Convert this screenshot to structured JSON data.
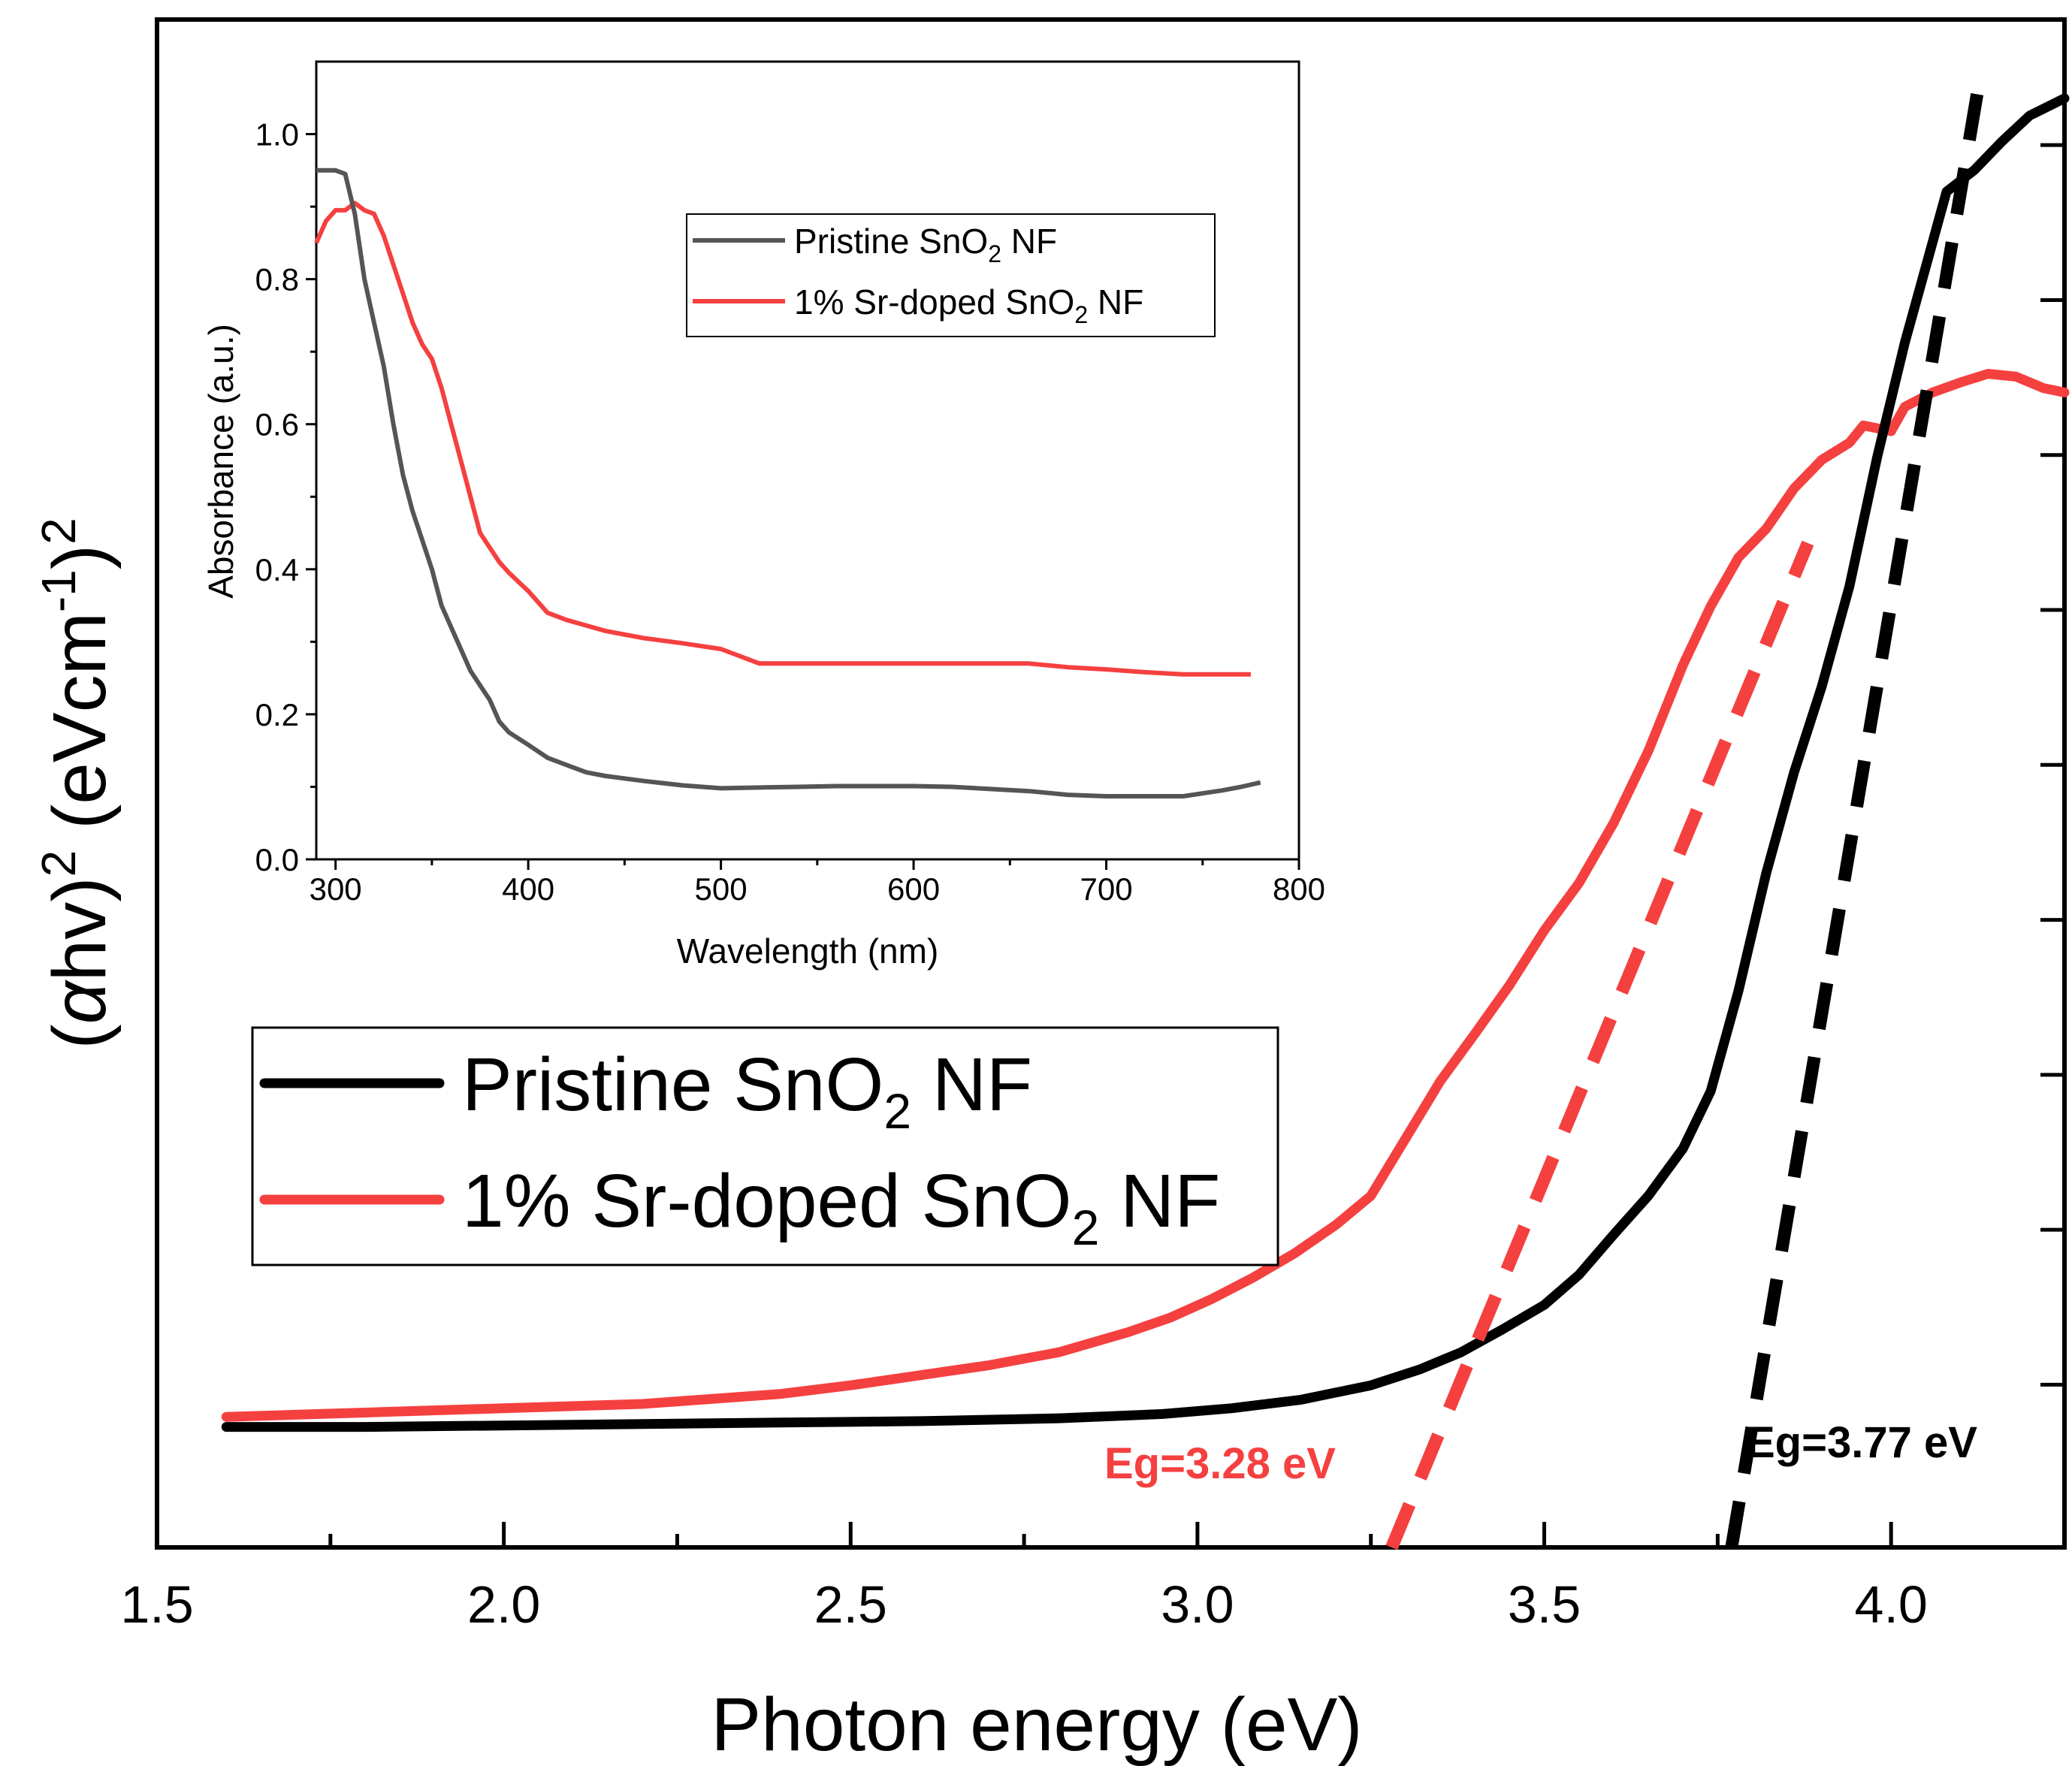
{
  "chart_data": [
    {
      "type": "line",
      "title": "",
      "xlabel": "Photon energy (eV)",
      "ylabel_parts": {
        "a": "(",
        "alpha": "α",
        "b": "hv)",
        "sup1": "2",
        "c": " (eVcm",
        "sup2": "-1",
        "d": ")",
        "sup3": "2"
      },
      "xlim": [
        1.5,
        4.25
      ],
      "ylim": [
        0.0,
        1.0
      ],
      "x_ticks": [
        "1.5",
        "2.0",
        "2.5",
        "3.0",
        "3.5",
        "4.0"
      ],
      "x_tick_values": [
        1.5,
        2.0,
        2.5,
        3.0,
        3.5,
        4.0
      ],
      "y_tick_labels_shown": false,
      "legend": {
        "position": "middle-left",
        "entries": [
          {
            "prefix": "Pristine SnO",
            "sub": "2",
            "suffix": " NF",
            "color": "#000000"
          },
          {
            "prefix": "1% Sr-doped SnO",
            "sub": "2",
            "suffix": " NF",
            "color": "#f54040"
          }
        ]
      },
      "series": [
        {
          "name": "Pristine SnO2 NF",
          "color": "#000000",
          "points": [
            [
              1.6,
              0.084
            ],
            [
              1.8,
              0.084
            ],
            [
              2.0,
              0.085
            ],
            [
              2.2,
              0.086
            ],
            [
              2.4,
              0.087
            ],
            [
              2.6,
              0.088
            ],
            [
              2.8,
              0.09
            ],
            [
              2.95,
              0.093
            ],
            [
              3.05,
              0.097
            ],
            [
              3.15,
              0.103
            ],
            [
              3.25,
              0.113
            ],
            [
              3.32,
              0.124
            ],
            [
              3.38,
              0.136
            ],
            [
              3.44,
              0.152
            ],
            [
              3.5,
              0.169
            ],
            [
              3.55,
              0.19
            ],
            [
              3.6,
              0.218
            ],
            [
              3.65,
              0.245
            ],
            [
              3.7,
              0.278
            ],
            [
              3.74,
              0.318
            ],
            [
              3.78,
              0.388
            ],
            [
              3.82,
              0.47
            ],
            [
              3.86,
              0.54
            ],
            [
              3.9,
              0.6
            ],
            [
              3.94,
              0.67
            ],
            [
              3.98,
              0.76
            ],
            [
              4.02,
              0.84
            ],
            [
              4.06,
              0.91
            ],
            [
              4.08,
              0.945
            ],
            [
              4.12,
              0.96
            ],
            [
              4.16,
              0.98
            ],
            [
              4.2,
              0.998
            ],
            [
              4.25,
              1.01
            ]
          ]
        },
        {
          "name": "1% Sr-doped SnO2 NF",
          "color": "#f54040",
          "points": [
            [
              1.6,
              0.091
            ],
            [
              1.8,
              0.094
            ],
            [
              2.0,
              0.097
            ],
            [
              2.2,
              0.1
            ],
            [
              2.4,
              0.107
            ],
            [
              2.5,
              0.113
            ],
            [
              2.6,
              0.12
            ],
            [
              2.7,
              0.127
            ],
            [
              2.8,
              0.136
            ],
            [
              2.9,
              0.15
            ],
            [
              2.96,
              0.16
            ],
            [
              3.02,
              0.173
            ],
            [
              3.08,
              0.188
            ],
            [
              3.14,
              0.205
            ],
            [
              3.2,
              0.225
            ],
            [
              3.25,
              0.245
            ],
            [
              3.3,
              0.285
            ],
            [
              3.35,
              0.325
            ],
            [
              3.4,
              0.358
            ],
            [
              3.45,
              0.392
            ],
            [
              3.5,
              0.43
            ],
            [
              3.55,
              0.463
            ],
            [
              3.6,
              0.505
            ],
            [
              3.65,
              0.555
            ],
            [
              3.7,
              0.615
            ],
            [
              3.74,
              0.656
            ],
            [
              3.78,
              0.69
            ],
            [
              3.82,
              0.71
            ],
            [
              3.86,
              0.738
            ],
            [
              3.9,
              0.758
            ],
            [
              3.94,
              0.77
            ],
            [
              3.96,
              0.782
            ],
            [
              4.0,
              0.778
            ],
            [
              4.02,
              0.795
            ],
            [
              4.06,
              0.805
            ],
            [
              4.1,
              0.812
            ],
            [
              4.14,
              0.818
            ],
            [
              4.18,
              0.816
            ],
            [
              4.22,
              0.808
            ],
            [
              4.25,
              0.805
            ]
          ]
        }
      ],
      "fit_lines": [
        {
          "name": "Pristine SnO2 NF fit",
          "color": "#000000",
          "from": [
            3.77,
            0.0
          ],
          "to": [
            4.13,
            1.03
          ]
        },
        {
          "name": "1% Sr-doped SnO2 NF fit",
          "color": "#f54040",
          "from": [
            3.28,
            0.0
          ],
          "to": [
            3.88,
            0.7
          ]
        }
      ],
      "annotations": [
        {
          "text": "Eg=3.28 eV",
          "x": 3.28,
          "y": 0.05,
          "color": "#f54040"
        },
        {
          "text": "Eg=3.77 eV",
          "x": 3.77,
          "y": 0.07,
          "color": "#000000"
        }
      ]
    },
    {
      "type": "line",
      "title": "",
      "xlabel": "Wavelength (nm)",
      "ylabel": "Absorbance (a.u.)",
      "xlim": [
        290,
        800
      ],
      "ylim": [
        0.0,
        1.1
      ],
      "x_ticks": [
        "300",
        "400",
        "500",
        "600",
        "700",
        "800"
      ],
      "x_tick_values": [
        300,
        400,
        500,
        600,
        700,
        800
      ],
      "y_ticks": [
        "0.0",
        "0.2",
        "0.4",
        "0.6",
        "0.8",
        "1.0"
      ],
      "y_tick_values": [
        0.0,
        0.2,
        0.4,
        0.6,
        0.8,
        1.0
      ],
      "legend": {
        "position": "top-right",
        "entries": [
          {
            "prefix": "Pristine SnO",
            "sub": "2",
            "suffix": " NF",
            "color": "#555555"
          },
          {
            "prefix": "1% Sr-doped SnO",
            "sub": "2",
            "suffix": " NF",
            "color": "#f54040"
          }
        ]
      },
      "series": [
        {
          "name": "Pristine SnO2 NF",
          "color": "#555555",
          "points": [
            [
              290,
              0.95
            ],
            [
              300,
              0.95
            ],
            [
              305,
              0.945
            ],
            [
              310,
              0.89
            ],
            [
              315,
              0.8
            ],
            [
              320,
              0.74
            ],
            [
              325,
              0.68
            ],
            [
              330,
              0.6
            ],
            [
              335,
              0.53
            ],
            [
              340,
              0.48
            ],
            [
              345,
              0.44
            ],
            [
              350,
              0.4
            ],
            [
              355,
              0.35
            ],
            [
              360,
              0.32
            ],
            [
              365,
              0.29
            ],
            [
              370,
              0.26
            ],
            [
              375,
              0.24
            ],
            [
              380,
              0.22
            ],
            [
              385,
              0.19
            ],
            [
              390,
              0.175
            ],
            [
              400,
              0.158
            ],
            [
              410,
              0.14
            ],
            [
              420,
              0.13
            ],
            [
              430,
              0.12
            ],
            [
              440,
              0.115
            ],
            [
              460,
              0.108
            ],
            [
              480,
              0.102
            ],
            [
              500,
              0.098
            ],
            [
              520,
              0.099
            ],
            [
              540,
              0.1
            ],
            [
              560,
              0.101
            ],
            [
              580,
              0.101
            ],
            [
              600,
              0.101
            ],
            [
              620,
              0.1
            ],
            [
              640,
              0.097
            ],
            [
              660,
              0.094
            ],
            [
              680,
              0.089
            ],
            [
              700,
              0.087
            ],
            [
              720,
              0.087
            ],
            [
              740,
              0.087
            ],
            [
              760,
              0.095
            ],
            [
              770,
              0.1
            ],
            [
              780,
              0.106
            ]
          ]
        },
        {
          "name": "1% Sr-doped SnO2 NF",
          "color": "#f54040",
          "points": [
            [
              290,
              0.85
            ],
            [
              295,
              0.88
            ],
            [
              300,
              0.895
            ],
            [
              305,
              0.895
            ],
            [
              310,
              0.905
            ],
            [
              315,
              0.895
            ],
            [
              320,
              0.89
            ],
            [
              325,
              0.86
            ],
            [
              330,
              0.82
            ],
            [
              335,
              0.78
            ],
            [
              340,
              0.74
            ],
            [
              345,
              0.71
            ],
            [
              350,
              0.69
            ],
            [
              355,
              0.65
            ],
            [
              360,
              0.6
            ],
            [
              365,
              0.55
            ],
            [
              370,
              0.5
            ],
            [
              375,
              0.45
            ],
            [
              380,
              0.43
            ],
            [
              385,
              0.41
            ],
            [
              390,
              0.395
            ],
            [
              400,
              0.37
            ],
            [
              410,
              0.34
            ],
            [
              420,
              0.33
            ],
            [
              440,
              0.315
            ],
            [
              460,
              0.305
            ],
            [
              480,
              0.298
            ],
            [
              500,
              0.29
            ],
            [
              520,
              0.27
            ],
            [
              540,
              0.27
            ],
            [
              560,
              0.27
            ],
            [
              580,
              0.27
            ],
            [
              600,
              0.27
            ],
            [
              620,
              0.27
            ],
            [
              640,
              0.27
            ],
            [
              660,
              0.27
            ],
            [
              680,
              0.265
            ],
            [
              700,
              0.262
            ],
            [
              720,
              0.258
            ],
            [
              740,
              0.255
            ],
            [
              760,
              0.255
            ],
            [
              775,
              0.255
            ]
          ]
        }
      ]
    }
  ]
}
